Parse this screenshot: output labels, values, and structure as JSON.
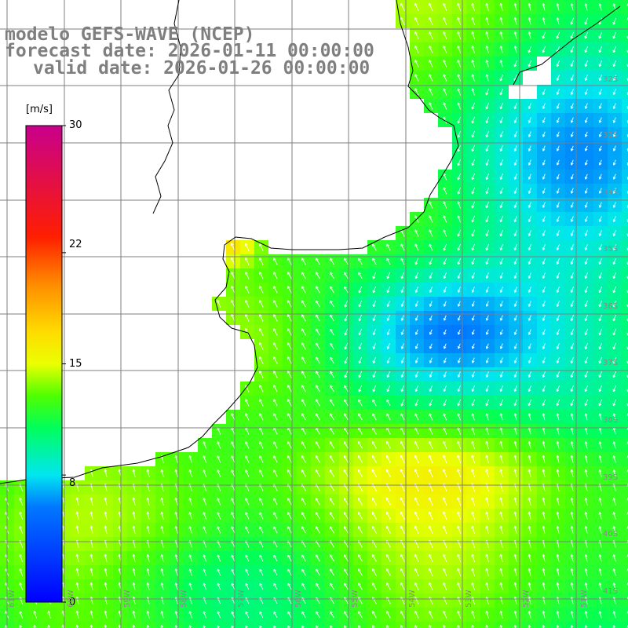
{
  "title": {
    "line1": "modelo GEFS-WAVE (NCEP)",
    "line2": "forecast date: 2026-01-11 00:00:00",
    "line3": "valid date: 2026-01-26 00:00:00"
  },
  "colorbar": {
    "unit": "[m/s]",
    "min": 0,
    "max": 30,
    "ticks": [
      "30",
      "22",
      "15",
      "8",
      "0"
    ],
    "tick_values": [
      30,
      22,
      15,
      8,
      0
    ],
    "colors": [
      "#0000ff",
      "#00ffff",
      "#00ff00",
      "#ffff00",
      "#ff0000",
      "#c8008c"
    ]
  },
  "map": {
    "lat_labels": [
      "32S",
      "33S",
      "34S",
      "35S",
      "36S",
      "37S",
      "38S",
      "39S",
      "40S",
      "41S"
    ],
    "lon_labels": [
      "61W",
      "60W",
      "59W",
      "58W",
      "57W",
      "56W",
      "55W",
      "54W",
      "53W",
      "52W",
      "51W"
    ],
    "land_color": "#ffffff",
    "grid_color": "#7f7f7f",
    "coast_color": "#000000",
    "arrow_color": "#ffffff"
  }
}
